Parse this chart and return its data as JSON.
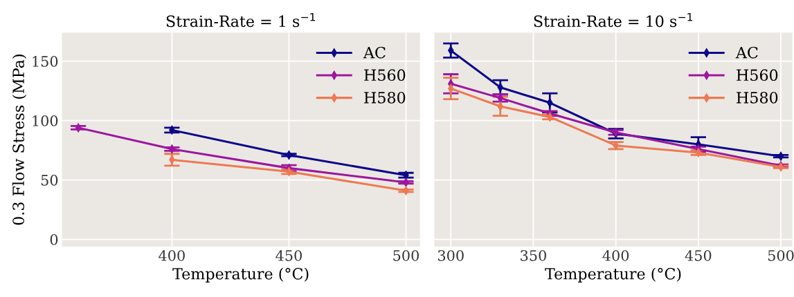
{
  "chart_data": [
    {
      "type": "line",
      "title": "Strain-Rate = 1 s$^{−1}$",
      "xlabel": "Temperature (°C)",
      "ylabel": "0.3 Flow Stress (MPa)",
      "xlim": [
        353,
        506
      ],
      "xticks": [
        400,
        450,
        500
      ],
      "ylim": [
        -6,
        174
      ],
      "yticks": [
        0,
        50,
        100,
        150
      ],
      "grid": true,
      "legend": "top right",
      "marker": "diamond",
      "series": [
        {
          "name": "AC",
          "color": "#0d0887",
          "x": [
            400,
            450,
            500
          ],
          "values": [
            92,
            71,
            54
          ],
          "errors": [
            2,
            1,
            2
          ]
        },
        {
          "name": "H560",
          "color": "#9c179e",
          "x": [
            360,
            400,
            450,
            500
          ],
          "values": [
            94,
            76,
            60,
            48
          ],
          "errors": [
            1.5,
            1.5,
            2.5,
            1
          ]
        },
        {
          "name": "H580",
          "color": "#ed7953",
          "x": [
            400,
            450,
            500
          ],
          "values": [
            67,
            57,
            41
          ],
          "errors": [
            5,
            2,
            1
          ]
        }
      ]
    },
    {
      "type": "line",
      "title": "Strain-Rate = 10 s$^{−1}$",
      "xlabel": "Temperature (°C)",
      "xlim": [
        290,
        507
      ],
      "xticks": [
        300,
        350,
        400,
        450,
        500
      ],
      "ylim": [
        -6,
        174
      ],
      "yticks": [
        0,
        50,
        100,
        150
      ],
      "tick_labels": "x",
      "grid": true,
      "legend": "top right",
      "marker": "diamond",
      "series": [
        {
          "name": "AC",
          "color": "#0d0887",
          "x": [
            300,
            330,
            360,
            400,
            450,
            500
          ],
          "values": [
            159,
            128,
            115,
            89,
            80,
            70
          ],
          "errors": [
            6,
            6,
            8,
            4,
            6,
            1
          ]
        },
        {
          "name": "H560",
          "color": "#9c179e",
          "x": [
            300,
            330,
            360,
            400,
            450,
            500
          ],
          "values": [
            131,
            119,
            106,
            90,
            76,
            62
          ],
          "errors": [
            8,
            3,
            2,
            2,
            2,
            1
          ]
        },
        {
          "name": "H580",
          "color": "#ed7953",
          "x": [
            300,
            330,
            360,
            400,
            450,
            500
          ],
          "values": [
            127,
            112,
            103,
            79,
            73,
            61
          ],
          "errors": [
            9,
            8,
            2,
            3,
            2,
            1
          ]
        }
      ]
    }
  ]
}
